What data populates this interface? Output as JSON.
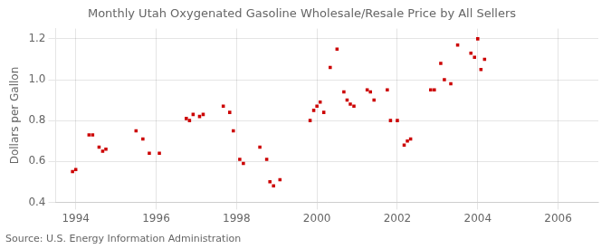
{
  "chart_data": {
    "type": "scatter",
    "title": "Monthly Utah Oxygenated Gasoline Wholesale/Resale Price by All Sellers",
    "ylabel": "Dollars per Gallon",
    "annotation": "Source: U.S. Energy Information Administration",
    "color": "#cc0000",
    "marker": "square",
    "grid": true,
    "xlim": [
      1993.5,
      2007.0
    ],
    "ylim": [
      0.4,
      1.25
    ],
    "xticks": [
      1994,
      1996,
      1998,
      2000,
      2002,
      2004,
      2006
    ],
    "yticks": [
      0.4,
      0.6,
      0.8,
      {
        "value": 1.0,
        "label": "1.0"
      },
      1.2
    ],
    "x": [
      1993.92,
      1994.0,
      1994.33,
      1994.42,
      1994.58,
      1994.67,
      1994.75,
      1995.5,
      1995.67,
      1995.83,
      1996.08,
      1996.75,
      1996.83,
      1996.92,
      1997.08,
      1997.17,
      1997.67,
      1997.83,
      1997.92,
      1998.08,
      1998.17,
      1998.58,
      1998.75,
      1998.83,
      1998.92,
      1999.08,
      1999.83,
      1999.92,
      2000.0,
      2000.08,
      2000.17,
      2000.33,
      2000.5,
      2000.67,
      2000.75,
      2000.83,
      2000.92,
      2001.25,
      2001.33,
      2001.42,
      2001.75,
      2001.83,
      2002.0,
      2002.17,
      2002.25,
      2002.33,
      2002.83,
      2002.92,
      2003.08,
      2003.17,
      2003.33,
      2003.5,
      2003.83,
      2003.92,
      2004.0,
      2004.08,
      2004.17
    ],
    "values": [
      0.55,
      0.56,
      0.73,
      0.73,
      0.67,
      0.65,
      0.66,
      0.75,
      0.71,
      0.64,
      0.64,
      0.81,
      0.8,
      0.83,
      0.82,
      0.83,
      0.87,
      0.84,
      0.75,
      0.61,
      0.59,
      0.67,
      0.61,
      0.5,
      0.48,
      0.51,
      0.8,
      0.85,
      0.87,
      0.89,
      0.84,
      1.06,
      1.15,
      0.94,
      0.9,
      0.88,
      0.87,
      0.95,
      0.94,
      0.9,
      0.95,
      0.8,
      0.8,
      0.68,
      0.7,
      0.71,
      0.95,
      0.95,
      1.08,
      1.0,
      0.98,
      1.17,
      1.13,
      1.11,
      1.2,
      1.05,
      1.1
    ]
  }
}
